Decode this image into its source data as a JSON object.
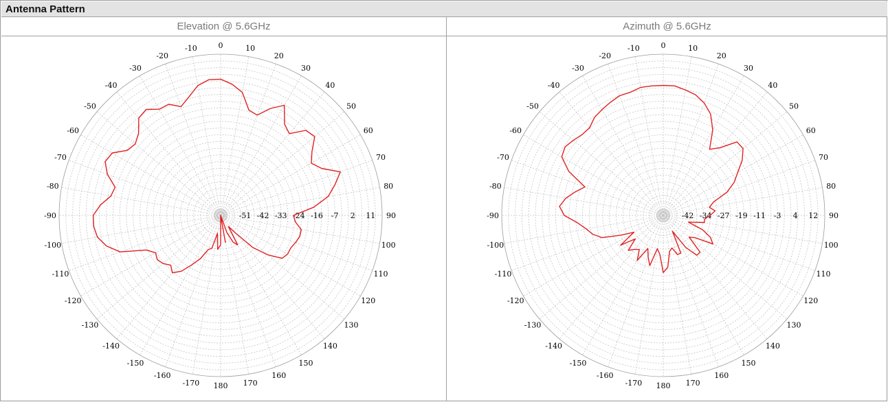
{
  "section": {
    "title": "Antenna Pattern"
  },
  "chart_data": [
    {
      "type": "polar",
      "title": "Elevation @ 5.6GHz",
      "angle_labels": [
        "0",
        "10",
        "20",
        "30",
        "40",
        "50",
        "60",
        "70",
        "80",
        "90",
        "100",
        "110",
        "120",
        "130",
        "140",
        "150",
        "160",
        "170",
        "180",
        "-170",
        "-160",
        "-150",
        "-140",
        "-130",
        "-120",
        "-110",
        "-100",
        "-90",
        "-80",
        "-70",
        "-60",
        "-50",
        "-40",
        "-30",
        "-20",
        "-10"
      ],
      "radial_ticks": [
        "-51",
        "-42",
        "-33",
        "-24",
        "-16",
        "-7",
        "2",
        "11"
      ],
      "r_range": [
        -60,
        11
      ],
      "series": [
        {
          "color": "#e02020",
          "angles": [
            0,
            5,
            10,
            15,
            20,
            25,
            30,
            35,
            40,
            45,
            50,
            55,
            60,
            65,
            70,
            75,
            80,
            85,
            90,
            95,
            100,
            105,
            110,
            115,
            120,
            125,
            130,
            135,
            140,
            145,
            150,
            155,
            160,
            165,
            170,
            175,
            180,
            185,
            190,
            195,
            200,
            205,
            210,
            215,
            220,
            225,
            230,
            235,
            240,
            245,
            250,
            255,
            260,
            265,
            270,
            275,
            280,
            285,
            290,
            295,
            300,
            305,
            310,
            315,
            320,
            325,
            330,
            335,
            340,
            345,
            350,
            355
          ],
          "values": [
            0,
            -2,
            -5,
            -12,
            -13,
            -8,
            -4,
            -11,
            -13,
            -7,
            -6,
            -11,
            -14,
            -11,
            -4,
            -8,
            -12,
            -19,
            -28,
            -27,
            -24,
            -24,
            -25,
            -26,
            -26,
            -27,
            -33,
            -40,
            -50,
            -54,
            -45,
            -47,
            -52,
            -60,
            -48,
            -60,
            -47,
            -45,
            -52,
            -45,
            -44,
            -39,
            -35,
            -30,
            -27,
            -29,
            -27,
            -26,
            -27,
            -24,
            -13,
            -8,
            -5,
            -4,
            -4,
            -7,
            -11,
            -12,
            -7,
            -4,
            -5,
            -10,
            -11,
            -9,
            -4,
            -3,
            -6,
            -6,
            -9,
            -6,
            -2,
            0
          ]
        }
      ]
    },
    {
      "type": "polar",
      "title": "Azimuth @ 5.6GHz",
      "angle_labels": [
        "0",
        "10",
        "20",
        "30",
        "40",
        "50",
        "60",
        "70",
        "80",
        "90",
        "100",
        "110",
        "120",
        "130",
        "140",
        "150",
        "160",
        "170",
        "180",
        "-170",
        "-160",
        "-150",
        "-140",
        "-130",
        "-120",
        "-110",
        "-100",
        "-90",
        "-80",
        "-70",
        "-60",
        "-50",
        "-40",
        "-30",
        "-20",
        "-10"
      ],
      "radial_ticks": [
        "-42",
        "-34",
        "-27",
        "-19",
        "-11",
        "-3",
        "4",
        "12"
      ],
      "r_range": [
        -50,
        12
      ],
      "series": [
        {
          "color": "#e02020",
          "angles": [
            0,
            5,
            10,
            15,
            20,
            25,
            30,
            35,
            40,
            45,
            50,
            55,
            60,
            65,
            70,
            75,
            80,
            85,
            90,
            95,
            100,
            105,
            110,
            115,
            120,
            125,
            130,
            135,
            140,
            145,
            150,
            155,
            160,
            165,
            170,
            175,
            180,
            185,
            190,
            195,
            200,
            205,
            210,
            215,
            220,
            225,
            230,
            235,
            240,
            245,
            250,
            255,
            260,
            265,
            270,
            275,
            280,
            285,
            290,
            295,
            300,
            305,
            310,
            315,
            320,
            325,
            330,
            335,
            340,
            345,
            350,
            355
          ],
          "values": [
            0,
            0,
            -1,
            -2,
            -4,
            -7,
            -12,
            -19,
            -16,
            -10,
            -10,
            -13,
            -17,
            -20,
            -24,
            -30,
            -32,
            -30,
            -32,
            -34,
            -34,
            -40,
            -34,
            -30,
            -28,
            -35,
            -37,
            -30,
            -30,
            -35,
            -43,
            -34,
            -34,
            -37,
            -36,
            -30,
            -28,
            -35,
            -37,
            -30,
            -33,
            -36,
            -30,
            -34,
            -33,
            -31,
            -36,
            -30,
            -37,
            -32,
            -25,
            -22,
            -20,
            -17,
            -12,
            -10,
            -12,
            -15,
            -18,
            -10,
            -5,
            -4,
            -5,
            -6,
            -6,
            -4,
            -3,
            -2,
            -1,
            -1,
            0,
            0
          ]
        }
      ]
    }
  ]
}
